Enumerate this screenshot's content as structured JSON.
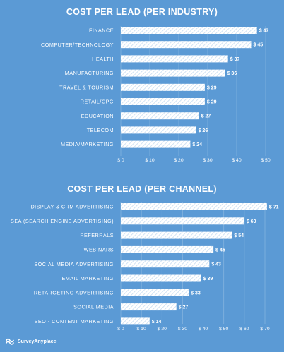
{
  "brand": {
    "name": "SurveyAnyplace"
  },
  "chart_data": [
    {
      "type": "bar",
      "orientation": "horizontal",
      "title": "COST PER LEAD (PER INDUSTRY)",
      "categories": [
        "FINANCE",
        "COMPUTER/TECHNOLOGY",
        "HEALTH",
        "MANUFACTURING",
        "TRAVEL & TOURISM",
        "RETAIL/CPG",
        "EDUCATION",
        "TELECOM",
        "MEDIA/MARKETING"
      ],
      "values": [
        47,
        45,
        37,
        36,
        29,
        29,
        27,
        26,
        24
      ],
      "value_labels": [
        "$ 47",
        "$ 45",
        "$ 37",
        "$ 36",
        "$ 29",
        "$ 29",
        "$ 27",
        "$ 26",
        "$ 24"
      ],
      "xlim": [
        0,
        50
      ],
      "ticks": [
        0,
        10,
        20,
        30,
        40,
        50
      ],
      "tick_labels": [
        "$ 0",
        "$ 10",
        "$ 20",
        "$ 30",
        "$ 40",
        "$ 50"
      ],
      "grid": true,
      "colors": {
        "bar": "#ffffff",
        "stripe": "#c7dcf1",
        "background": "#5b9ad5"
      }
    },
    {
      "type": "bar",
      "orientation": "horizontal",
      "title": "COST PER LEAD (PER CHANNEL)",
      "categories": [
        "DISPLAY & CRM ADVERTISING",
        "SEA (SEARCH ENGINE ADVERTISING)",
        "REFERRALS",
        "WEBINARS",
        "SOCIAL MEDIA ADVERTISING",
        "EMAIL MARKETING",
        "RETARGETING ADVERTISING",
        "SOCIAL MEDIA",
        "SEO - CONTENT MARKETING"
      ],
      "values": [
        71,
        60,
        54,
        45,
        43,
        39,
        33,
        27,
        14
      ],
      "value_labels": [
        "$ 71",
        "$ 60",
        "$ 54",
        "$ 45",
        "$ 43",
        "$ 39",
        "$ 33",
        "$ 27",
        "$ 14"
      ],
      "xlim": [
        0,
        70
      ],
      "ticks": [
        0,
        10,
        20,
        30,
        40,
        50,
        60,
        70
      ],
      "tick_labels": [
        "$ 0",
        "$ 10",
        "$ 20",
        "$ 30",
        "$ 40",
        "$ 50",
        "$ 60",
        "$ 70"
      ],
      "grid": true,
      "colors": {
        "bar": "#ffffff",
        "stripe": "#c7dcf1",
        "background": "#5b9ad5"
      }
    }
  ]
}
